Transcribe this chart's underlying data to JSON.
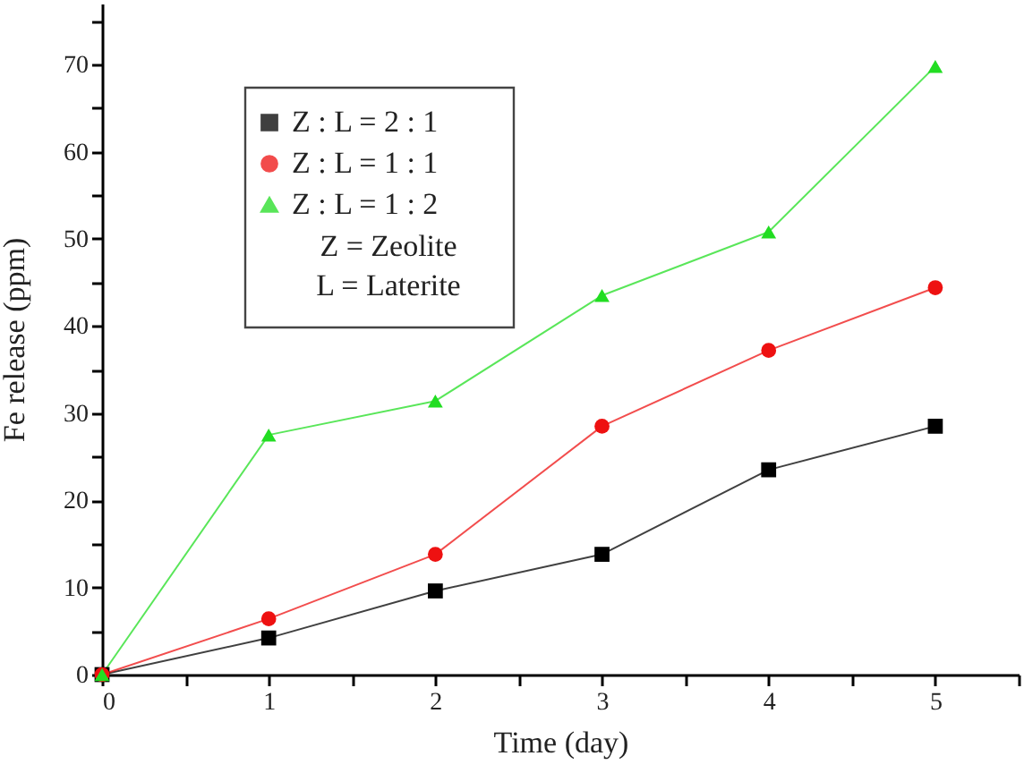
{
  "chart_data": {
    "type": "line",
    "xlabel": "Time (day)",
    "ylabel": "Fe release (ppm)",
    "x": [
      0,
      1,
      2,
      3,
      4,
      5
    ],
    "series": [
      {
        "name": "Z : L = 2 : 1",
        "color": "#000000",
        "marker": "square",
        "values": [
          0,
          4.2,
          9.6,
          13.8,
          23.5,
          28.5
        ]
      },
      {
        "name": "Z : L = 1 : 1",
        "color": "#ee1111",
        "marker": "circle",
        "values": [
          0,
          6.4,
          13.8,
          28.5,
          37.2,
          44.4
        ]
      },
      {
        "name": "Z : L = 1 : 2",
        "color": "#22dd22",
        "marker": "triangle",
        "values": [
          0,
          27.5,
          31.4,
          43.5,
          50.8,
          69.8
        ]
      }
    ],
    "annotations": [
      "Z = Zeolite",
      "L = Laterite"
    ],
    "legend": "top left",
    "xlim": [
      0,
      5.5
    ],
    "ylim": [
      0,
      77
    ],
    "xticks": [
      0,
      {
        "value": 0.5,
        "label": null
      },
      1,
      {
        "value": 1.5,
        "label": null
      },
      2,
      {
        "value": 2.5,
        "label": null
      },
      3,
      {
        "value": 3.5,
        "label": null
      },
      4,
      {
        "value": 4.5,
        "label": null
      },
      5,
      {
        "value": 5.5,
        "label": null
      }
    ],
    "yticks": [
      0,
      {
        "value": 5,
        "label": null
      },
      10,
      {
        "value": 15,
        "label": null
      },
      20,
      {
        "value": 25,
        "label": null
      },
      30,
      {
        "value": 35,
        "label": null
      },
      40,
      {
        "value": 45,
        "label": null
      },
      50,
      {
        "value": 55,
        "label": null
      },
      60,
      {
        "value": 65,
        "label": null
      },
      70,
      {
        "value": 75,
        "label": null
      }
    ]
  }
}
